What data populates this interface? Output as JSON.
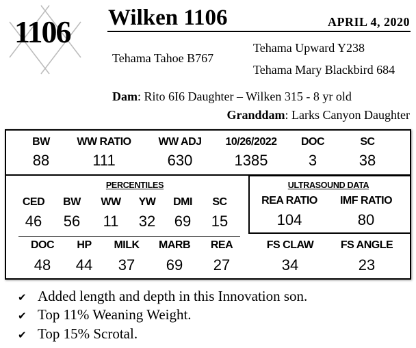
{
  "header": {
    "lot_number": "1106",
    "title": "Wilken 1106",
    "date": "APRIL  4, 2020",
    "sire": "Tehama Tahoe B767",
    "sire_sire": "Tehama Upward Y238",
    "sire_dam": "Tehama Mary Blackbird 684",
    "dam_label": "Dam",
    "dam_value": ": Rito 6I6 Daughter – Wilken 315 - 8 yr old",
    "granddam_label": "Granddam",
    "granddam_value": ": Larks Canyon Daughter"
  },
  "top_row": [
    {
      "label": "BW",
      "value": "88"
    },
    {
      "label": "WW RATIO",
      "value": "111"
    },
    {
      "label": "WW ADJ",
      "value": "630"
    },
    {
      "label": "10/26/2022",
      "value": "1385"
    },
    {
      "label": "DOC",
      "value": "3"
    },
    {
      "label": "SC",
      "value": "38"
    }
  ],
  "percentiles": {
    "title": "PERCENTILES",
    "row1": [
      {
        "label": "CED",
        "value": "46"
      },
      {
        "label": "BW",
        "value": "56"
      },
      {
        "label": "WW",
        "value": "11"
      },
      {
        "label": "YW",
        "value": "32"
      },
      {
        "label": "DMI",
        "value": "69"
      },
      {
        "label": "SC",
        "value": "15"
      }
    ],
    "row2": [
      {
        "label": "DOC",
        "value": "48"
      },
      {
        "label": "HP",
        "value": "44"
      },
      {
        "label": "MILK",
        "value": "37"
      },
      {
        "label": "MARB",
        "value": "69"
      },
      {
        "label": "REA",
        "value": "27"
      }
    ]
  },
  "ultrasound": {
    "title": "ULTRASOUND DATA",
    "items": [
      {
        "label": "REA RATIO",
        "value": "104"
      },
      {
        "label": "IMF RATIO",
        "value": "80"
      }
    ]
  },
  "feet": [
    {
      "label": "FS CLAW",
      "value": "34"
    },
    {
      "label": "FS ANGLE",
      "value": "23"
    }
  ],
  "bullets": [
    {
      "icon": "check-icon",
      "text": "Added length and depth in this Innovation son."
    },
    {
      "icon": "check-icon",
      "text": "Top 11% Weaning Weight."
    },
    {
      "icon": "check-icon",
      "text": "Top 15% Scrotal."
    }
  ]
}
